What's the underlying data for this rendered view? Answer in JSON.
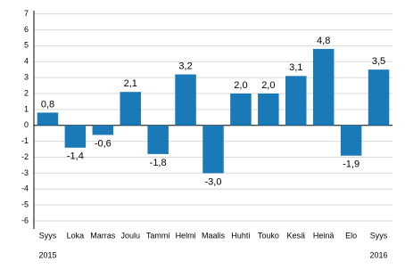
{
  "chart_data": {
    "type": "bar",
    "categories": [
      "Syys",
      "Loka",
      "Marras",
      "Joulu",
      "Tammi",
      "Helmi",
      "Maalis",
      "Huhti",
      "Touko",
      "Kesä",
      "Heinä",
      "Elo",
      "Syys"
    ],
    "year_labels": [
      "2015",
      null,
      null,
      null,
      null,
      null,
      null,
      null,
      null,
      null,
      null,
      null,
      "2016"
    ],
    "values": [
      0.8,
      -1.4,
      -0.6,
      2.1,
      -1.8,
      3.2,
      -3.0,
      2.0,
      2.0,
      3.1,
      4.8,
      -1.9,
      3.5
    ],
    "value_labels": [
      "0,8",
      "-1,4",
      "-0,6",
      "2,1",
      "-1,8",
      "3,2",
      "-3,0",
      "2,0",
      "2,0",
      "3,1",
      "4,8",
      "-1,9",
      "3,5"
    ],
    "color": "#1a7ab8",
    "ylim": [
      -6.5,
      7.2
    ],
    "yticks": [
      -6,
      -5,
      -4,
      -3,
      -2,
      -1,
      0,
      1,
      2,
      3,
      4,
      5,
      6,
      7
    ],
    "grid": true
  }
}
